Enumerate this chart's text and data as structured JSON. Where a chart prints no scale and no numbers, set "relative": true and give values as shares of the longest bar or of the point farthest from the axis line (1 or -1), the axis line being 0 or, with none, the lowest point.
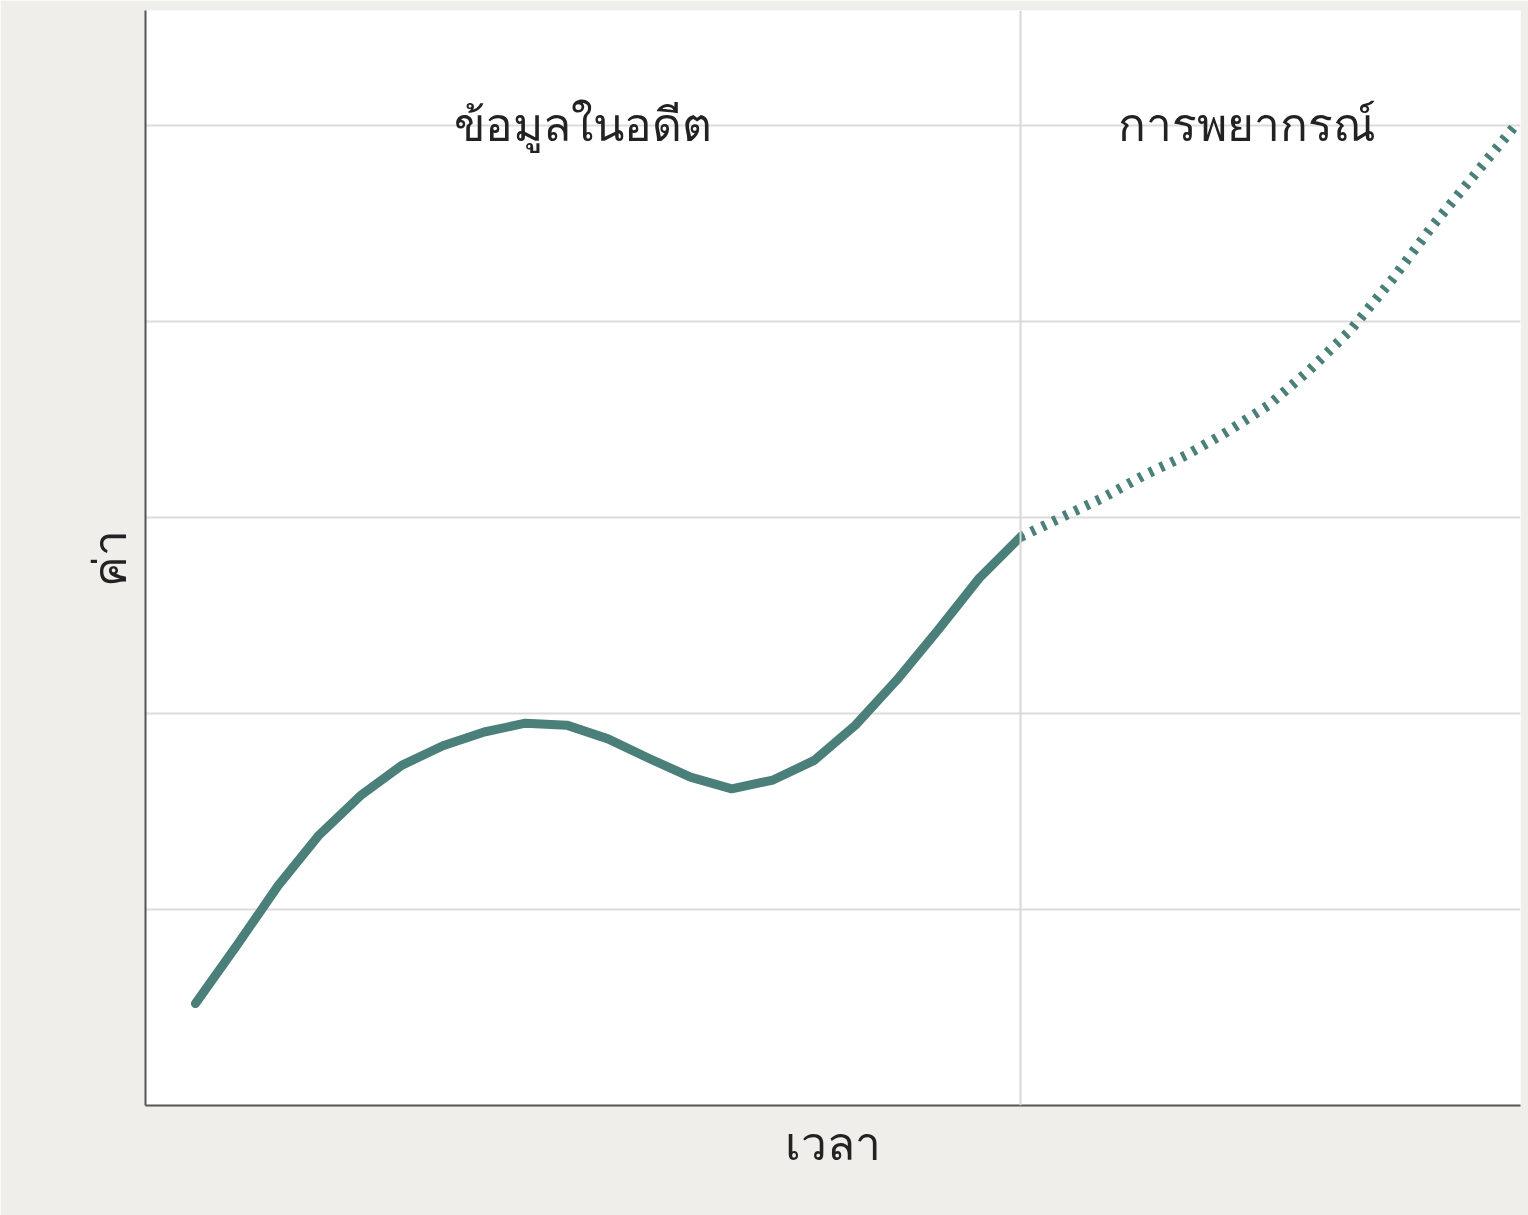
{
  "chart_data": {
    "type": "line",
    "relative": true,
    "xlabel": "เวลา",
    "ylabel": "ค่า",
    "annotations": [
      "ข้อมูลในอดีต",
      "การพยากรณ์"
    ],
    "categories": [
      null,
      null,
      null,
      null,
      null,
      null,
      null,
      null,
      null,
      null,
      null,
      null,
      null,
      null,
      null,
      null,
      null,
      null,
      null,
      null,
      null,
      null,
      null,
      null,
      null,
      null,
      null,
      null,
      null,
      null,
      null,
      null,
      null
    ],
    "series": [
      {
        "color": "#4a7f7a",
        "line_style": "solid",
        "values": [
          0.104,
          0.163,
          0.224,
          0.276,
          0.316,
          0.347,
          0.367,
          0.381,
          0.39,
          0.388,
          0.374,
          0.354,
          0.335,
          0.323,
          0.332,
          0.352,
          0.388,
          0.434,
          0.485,
          0.538,
          0.58,
          null,
          null,
          null,
          null,
          null,
          null,
          null,
          null,
          null,
          null,
          null,
          null
        ]
      },
      {
        "color": "#4a7f7a",
        "line_style": "dotted",
        "values": [
          null,
          null,
          null,
          null,
          null,
          null,
          null,
          null,
          null,
          null,
          null,
          null,
          null,
          null,
          null,
          null,
          null,
          null,
          null,
          null,
          0.58,
          0.6,
          0.62,
          0.643,
          0.663,
          0.687,
          0.714,
          0.75,
          0.791,
          0.842,
          0.898,
          0.949,
          1
        ]
      }
    ],
    "grid": "y",
    "marker": "none"
  }
}
